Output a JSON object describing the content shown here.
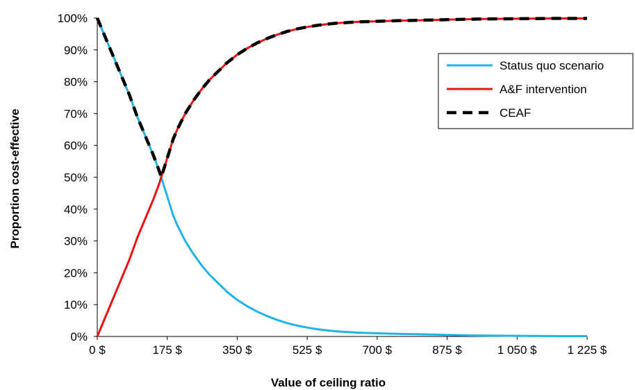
{
  "chart_data": {
    "type": "line",
    "xlabel": "Value of ceiling ratio",
    "ylabel": "Proportion cost-effective",
    "xlim": [
      0,
      1225
    ],
    "ylim": [
      0,
      100
    ],
    "x_ticks": [
      0,
      175,
      350,
      525,
      700,
      875,
      1050,
      1225
    ],
    "x_tick_labels": [
      "0 $",
      "175 $",
      "350 $",
      "525 $",
      "700 $",
      "875 $",
      "1 050 $",
      "1 225 $"
    ],
    "y_ticks": [
      0,
      10,
      20,
      30,
      40,
      50,
      60,
      70,
      80,
      90,
      100
    ],
    "y_tick_labels": [
      "0%",
      "10%",
      "20%",
      "30%",
      "40%",
      "50%",
      "60%",
      "70%",
      "80%",
      "90%",
      "100%"
    ],
    "legend_position": "top-right",
    "grid": false,
    "series": [
      {
        "name": "Status quo scenario",
        "color": "#1EB4E8",
        "style": "solid",
        "x": [
          0,
          20,
          40,
          60,
          80,
          100,
          120,
          140,
          155,
          160,
          170,
          180,
          190,
          200,
          220,
          240,
          260,
          280,
          300,
          325,
          350,
          375,
          400,
          425,
          450,
          475,
          500,
          525,
          550,
          575,
          600,
          650,
          700,
          750,
          800,
          875,
          950,
          1050,
          1150,
          1225
        ],
        "y": [
          100,
          94,
          88,
          82,
          76,
          69,
          63,
          57,
          52,
          50,
          46,
          42,
          38,
          35,
          30,
          26,
          22.5,
          19.5,
          17,
          14,
          11.5,
          9.5,
          7.8,
          6.4,
          5.2,
          4.2,
          3.4,
          2.8,
          2.3,
          1.9,
          1.6,
          1.2,
          1.0,
          0.8,
          0.7,
          0.5,
          0.3,
          0.2,
          0.1,
          0.1
        ]
      },
      {
        "name": "A&F intervention",
        "color": "#EE1111",
        "style": "solid",
        "x": [
          0,
          20,
          40,
          60,
          80,
          100,
          120,
          140,
          155,
          160,
          170,
          180,
          190,
          200,
          220,
          240,
          260,
          280,
          300,
          325,
          350,
          375,
          400,
          425,
          450,
          475,
          500,
          525,
          550,
          575,
          600,
          650,
          700,
          750,
          800,
          875,
          950,
          1050,
          1150,
          1225
        ],
        "y": [
          0,
          6,
          12,
          18,
          24,
          31,
          37,
          43,
          48,
          50,
          54,
          58,
          62,
          65,
          70,
          74,
          77.5,
          80.5,
          83,
          86,
          88.5,
          90.5,
          92.2,
          93.6,
          94.8,
          95.8,
          96.6,
          97.2,
          97.7,
          98.1,
          98.4,
          98.8,
          99.0,
          99.2,
          99.3,
          99.5,
          99.7,
          99.8,
          99.9,
          99.9
        ]
      },
      {
        "name": "CEAF",
        "color": "#000000",
        "style": "dashed",
        "x": [
          0,
          20,
          40,
          60,
          80,
          100,
          120,
          140,
          155,
          160,
          170,
          180,
          190,
          200,
          220,
          240,
          260,
          280,
          300,
          325,
          350,
          375,
          400,
          425,
          450,
          475,
          500,
          525,
          550,
          575,
          600,
          650,
          700,
          750,
          800,
          875,
          950,
          1050,
          1150,
          1225
        ],
        "y": [
          100,
          94,
          88,
          82,
          76,
          69,
          63,
          57,
          52,
          50,
          54,
          58,
          62,
          65,
          70,
          74,
          77.5,
          80.5,
          83,
          86,
          88.5,
          90.5,
          92.2,
          93.6,
          94.8,
          95.8,
          96.6,
          97.2,
          97.7,
          98.1,
          98.4,
          98.8,
          99.0,
          99.2,
          99.3,
          99.5,
          99.7,
          99.8,
          99.9,
          99.9
        ]
      }
    ]
  }
}
